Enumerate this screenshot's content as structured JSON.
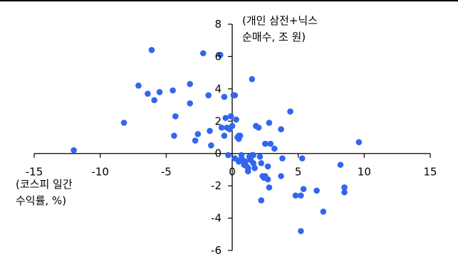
{
  "chart_data": {
    "type": "scatter",
    "xlim": [
      -15,
      15
    ],
    "ylim": [
      -6,
      8
    ],
    "xticks": [
      "-15",
      "-10",
      "-5",
      "0",
      "5",
      "10",
      "15"
    ],
    "yticks": [
      "8",
      "6",
      "4",
      "2",
      "0",
      "-2",
      "-4",
      "-6"
    ],
    "xlabel": [
      "(코스피 일간",
      "수익률, %)"
    ],
    "ylabel": [
      "(개인 삼전+닉스",
      "순매수, 조 원)"
    ],
    "grid": false,
    "marker_color": "#3366ee",
    "points": [
      [
        -12.0,
        0.2
      ],
      [
        -8.2,
        1.9
      ],
      [
        -7.1,
        4.2
      ],
      [
        -6.4,
        3.7
      ],
      [
        -6.1,
        6.4
      ],
      [
        -5.9,
        3.3
      ],
      [
        -5.5,
        3.8
      ],
      [
        -4.5,
        3.9
      ],
      [
        -4.4,
        1.1
      ],
      [
        -4.3,
        2.3
      ],
      [
        -3.2,
        4.3
      ],
      [
        -3.2,
        3.1
      ],
      [
        -2.8,
        0.8
      ],
      [
        -2.6,
        1.2
      ],
      [
        -2.2,
        6.2
      ],
      [
        -1.8,
        3.6
      ],
      [
        -1.7,
        1.4
      ],
      [
        -1.6,
        0.5
      ],
      [
        -0.8,
        1.6
      ],
      [
        -0.6,
        1.1
      ],
      [
        -0.6,
        3.5
      ],
      [
        -0.5,
        2.2
      ],
      [
        -0.4,
        1.6
      ],
      [
        -0.2,
        1.5
      ],
      [
        -0.1,
        2.3
      ],
      [
        0.0,
        1.7
      ],
      [
        0.1,
        3.6
      ],
      [
        0.2,
        3.6
      ],
      [
        0.3,
        2.1
      ],
      [
        0.4,
        1.0
      ],
      [
        0.5,
        1.1
      ],
      [
        0.5,
        0.9
      ],
      [
        0.6,
        1.1
      ],
      [
        -0.9,
        6.1
      ],
      [
        -0.3,
        -0.1
      ],
      [
        0.2,
        -0.3
      ],
      [
        0.5,
        -0.5
      ],
      [
        0.6,
        -0.4
      ],
      [
        0.7,
        -0.1
      ],
      [
        0.8,
        -0.4
      ],
      [
        0.9,
        -0.7
      ],
      [
        1.0,
        -0.5
      ],
      [
        1.1,
        -0.8
      ],
      [
        1.2,
        -0.9
      ],
      [
        1.3,
        -0.2
      ],
      [
        1.4,
        -0.4
      ],
      [
        1.5,
        -0.1
      ],
      [
        1.6,
        -0.6
      ],
      [
        1.2,
        -1.1
      ],
      [
        1.5,
        4.6
      ],
      [
        1.6,
        -0.1
      ],
      [
        1.7,
        -0.9
      ],
      [
        1.8,
        1.7
      ],
      [
        2.0,
        1.6
      ],
      [
        2.1,
        -0.2
      ],
      [
        2.2,
        -0.6
      ],
      [
        2.3,
        -1.4
      ],
      [
        2.4,
        -1.5
      ],
      [
        2.5,
        0.6
      ],
      [
        2.5,
        -1.4
      ],
      [
        2.7,
        -0.8
      ],
      [
        2.7,
        -1.6
      ],
      [
        2.8,
        1.9
      ],
      [
        2.8,
        -2.1
      ],
      [
        2.9,
        0.6
      ],
      [
        3.2,
        0.3
      ],
      [
        3.7,
        -1.4
      ],
      [
        3.8,
        -0.3
      ],
      [
        3.7,
        1.5
      ],
      [
        4.4,
        2.6
      ],
      [
        4.8,
        -2.6
      ],
      [
        5.2,
        -2.6
      ],
      [
        5.3,
        -0.3
      ],
      [
        5.2,
        -4.8
      ],
      [
        5.4,
        -2.2
      ],
      [
        6.4,
        -2.3
      ],
      [
        6.9,
        -3.6
      ],
      [
        2.2,
        -2.9
      ],
      [
        8.2,
        -0.7
      ],
      [
        8.5,
        -2.1
      ],
      [
        8.5,
        -2.4
      ],
      [
        9.6,
        0.7
      ]
    ]
  }
}
